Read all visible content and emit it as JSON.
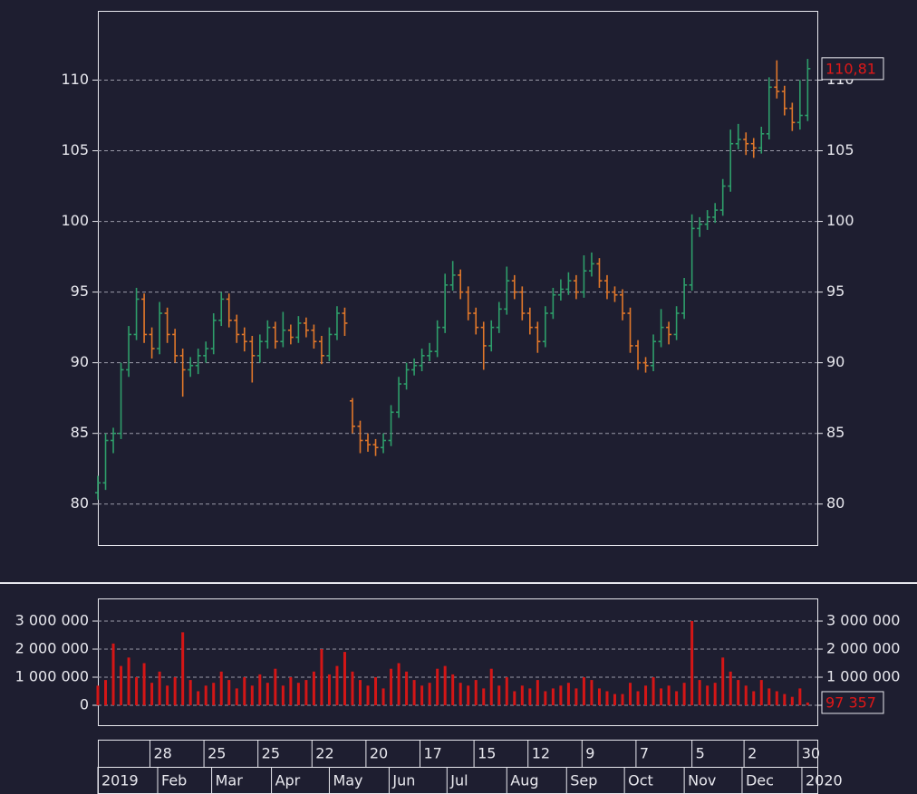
{
  "chart_data": {
    "type": "ohlc",
    "x": [
      0,
      4,
      8,
      12,
      16,
      20,
      24,
      28,
      32,
      36,
      40,
      44,
      48,
      52,
      56,
      60,
      64,
      68,
      72,
      76,
      80,
      84,
      88,
      92,
      96,
      100,
      104,
      108,
      112,
      116,
      120,
      124,
      128,
      132,
      136,
      140,
      144,
      148,
      152,
      156,
      160,
      164,
      168,
      172,
      176,
      180,
      184,
      188,
      192,
      196,
      200,
      204,
      208,
      212,
      216,
      220,
      224,
      228,
      232,
      236,
      240,
      244,
      248,
      252,
      256,
      260,
      264,
      268,
      272,
      276,
      280,
      284,
      288,
      292,
      296,
      300,
      304,
      308,
      312,
      316,
      320,
      324,
      328,
      332,
      336,
      340,
      344,
      348,
      352,
      356,
      360,
      364,
      368
    ],
    "open": [
      80.8,
      81.5,
      84.5,
      85.0,
      89.5,
      92.0,
      94.5,
      92.0,
      91.0,
      93.5,
      92.0,
      90.5,
      89.5,
      89.8,
      90.5,
      91.0,
      93.0,
      94.5,
      93.0,
      92.0,
      91.5,
      90.5,
      91.5,
      92.5,
      91.5,
      92.3,
      91.8,
      92.8,
      92.3,
      91.5,
      90.5,
      92.0,
      93.5,
      87.3,
      85.5,
      84.5,
      84.2,
      84.0,
      84.5,
      86.5,
      88.5,
      89.5,
      89.8,
      90.5,
      90.8,
      92.5,
      95.5,
      96.2,
      95.0,
      93.5,
      92.5,
      91.2,
      92.5,
      93.8,
      95.8,
      95.0,
      93.5,
      92.5,
      91.5,
      93.5,
      94.8,
      95.2,
      95.8,
      95.0,
      96.5,
      97.0,
      95.8,
      95.0,
      94.8,
      93.5,
      91.2,
      90.0,
      89.8,
      91.5,
      92.5,
      92.0,
      93.5,
      95.5,
      99.5,
      99.8,
      100.3,
      100.8,
      102.5,
      105.5,
      105.8,
      105.5,
      105.2,
      106.2,
      109.5,
      109.2,
      108.0,
      107.0,
      107.5
    ],
    "high": [
      82.0,
      85.0,
      85.4,
      90.0,
      92.6,
      95.3,
      94.9,
      92.5,
      94.3,
      93.9,
      92.4,
      91.0,
      90.4,
      91.0,
      91.5,
      93.5,
      95.0,
      94.9,
      93.4,
      92.5,
      91.9,
      92.0,
      93.0,
      92.9,
      93.6,
      92.7,
      93.3,
      93.2,
      92.7,
      91.9,
      92.5,
      94.0,
      93.9,
      87.5,
      85.9,
      85.0,
      84.6,
      85.0,
      87.0,
      89.0,
      90.0,
      90.3,
      91.0,
      91.4,
      93.0,
      96.3,
      97.2,
      96.6,
      95.4,
      93.9,
      92.9,
      93.0,
      94.3,
      96.8,
      96.2,
      95.4,
      93.9,
      92.9,
      94.0,
      95.3,
      95.9,
      96.4,
      96.2,
      97.6,
      97.8,
      97.4,
      96.2,
      95.4,
      95.2,
      93.9,
      91.6,
      90.4,
      92.0,
      93.8,
      92.9,
      94.0,
      96.0,
      100.5,
      100.3,
      100.8,
      101.3,
      103.0,
      106.5,
      106.9,
      106.3,
      105.9,
      106.7,
      110.2,
      111.4,
      109.6,
      108.4,
      110.0,
      111.5
    ],
    "low": [
      80.3,
      81.0,
      83.6,
      84.6,
      89.0,
      91.6,
      91.4,
      90.3,
      90.6,
      91.4,
      90.0,
      87.6,
      89.0,
      89.2,
      90.0,
      90.6,
      92.6,
      92.5,
      91.4,
      90.8,
      88.6,
      90.0,
      91.0,
      91.0,
      91.1,
      91.3,
      91.4,
      91.8,
      91.0,
      89.9,
      90.1,
      91.6,
      91.9,
      85.0,
      83.6,
      83.7,
      83.4,
      83.6,
      84.1,
      86.1,
      88.1,
      89.1,
      89.4,
      90.1,
      90.4,
      92.1,
      95.1,
      94.5,
      93.0,
      92.0,
      89.5,
      90.8,
      92.1,
      93.4,
      94.5,
      93.0,
      92.0,
      90.7,
      91.1,
      93.1,
      94.4,
      94.8,
      94.5,
      94.6,
      96.1,
      95.3,
      94.5,
      94.3,
      93.0,
      90.7,
      89.5,
      89.3,
      89.4,
      91.1,
      91.3,
      91.6,
      93.1,
      95.1,
      98.9,
      99.4,
      99.9,
      100.4,
      102.1,
      105.1,
      104.7,
      104.5,
      104.8,
      105.8,
      108.7,
      107.5,
      106.4,
      106.5,
      107.1
    ],
    "close": [
      81.5,
      84.5,
      85.0,
      89.5,
      92.0,
      94.5,
      92.0,
      91.0,
      93.5,
      92.0,
      90.5,
      89.5,
      89.8,
      90.5,
      91.0,
      93.0,
      94.5,
      93.0,
      92.0,
      91.5,
      90.5,
      91.5,
      92.5,
      91.5,
      92.3,
      91.8,
      92.8,
      92.3,
      91.5,
      90.5,
      92.0,
      93.5,
      92.8,
      85.5,
      84.5,
      84.2,
      84.0,
      84.5,
      86.5,
      88.5,
      89.5,
      89.8,
      90.5,
      90.8,
      92.5,
      95.5,
      96.2,
      95.0,
      93.5,
      92.5,
      91.2,
      92.5,
      93.8,
      95.8,
      95.0,
      93.5,
      92.5,
      91.5,
      93.5,
      94.8,
      95.2,
      95.8,
      95.0,
      96.5,
      97.0,
      95.8,
      95.0,
      94.8,
      93.5,
      91.2,
      90.0,
      89.8,
      91.5,
      92.5,
      92.0,
      93.5,
      95.5,
      99.5,
      99.8,
      100.3,
      100.8,
      102.5,
      105.5,
      105.8,
      105.5,
      105.2,
      106.2,
      109.5,
      109.2,
      108.0,
      107.0,
      107.5,
      110.81
    ],
    "volume": [
      700000,
      900000,
      2200000,
      1400000,
      1700000,
      1000000,
      1500000,
      800000,
      1200000,
      700000,
      1000000,
      2600000,
      900000,
      500000,
      700000,
      800000,
      1200000,
      900000,
      600000,
      1000000,
      700000,
      1100000,
      800000,
      1300000,
      700000,
      1000000,
      800000,
      900000,
      1200000,
      2000000,
      1100000,
      1400000,
      1900000,
      1200000,
      900000,
      700000,
      1000000,
      600000,
      1300000,
      1500000,
      1200000,
      900000,
      700000,
      800000,
      1300000,
      1400000,
      1100000,
      800000,
      700000,
      900000,
      600000,
      1300000,
      700000,
      1000000,
      500000,
      700000,
      600000,
      900000,
      500000,
      600000,
      700000,
      800000,
      600000,
      1000000,
      900000,
      600000,
      500000,
      400000,
      400000,
      800000,
      500000,
      700000,
      1000000,
      600000,
      700000,
      500000,
      800000,
      3000000,
      900000,
      700000,
      800000,
      1700000,
      1200000,
      900000,
      700000,
      500000,
      900000,
      600000,
      500000,
      400000,
      300000,
      600000,
      97357
    ],
    "xlim": [
      0,
      373
    ],
    "ylim": [
      77.1,
      114.9
    ],
    "yticks": [
      80,
      85,
      90,
      95,
      100,
      105,
      110
    ],
    "volume_ylim": [
      -710000,
      3806000
    ],
    "volume_yticks": [
      {
        "value": 3000000,
        "label": "3 000 000"
      },
      {
        "value": 2000000,
        "label": "2 000 000"
      },
      {
        "value": 1000000,
        "label": "1 000 000"
      },
      0
    ],
    "day_ticks": [
      {
        "value": 27,
        "label": "28"
      },
      {
        "value": 55,
        "label": "25"
      },
      {
        "value": 83,
        "label": "25"
      },
      {
        "value": 111,
        "label": "22"
      },
      {
        "value": 139,
        "label": "20"
      },
      {
        "value": 167,
        "label": "17"
      },
      {
        "value": 195,
        "label": "15"
      },
      {
        "value": 223,
        "label": "12"
      },
      {
        "value": 251,
        "label": "9"
      },
      {
        "value": 279,
        "label": "7"
      },
      {
        "value": 308,
        "label": "5"
      },
      {
        "value": 335,
        "label": "2"
      },
      {
        "value": 363,
        "label": "30"
      }
    ],
    "month_ticks": [
      {
        "value": 0,
        "label": "2019"
      },
      {
        "value": 31,
        "label": "Feb"
      },
      {
        "value": 59,
        "label": "Mar"
      },
      {
        "value": 90,
        "label": "Apr"
      },
      {
        "value": 120,
        "label": "May"
      },
      {
        "value": 151,
        "label": "Jun"
      },
      {
        "value": 181,
        "label": "Jul"
      },
      {
        "value": 212,
        "label": "Aug"
      },
      {
        "value": 243,
        "label": "Sep"
      },
      {
        "value": 273,
        "label": "Oct"
      },
      {
        "value": 304,
        "label": "Nov"
      },
      {
        "value": 334,
        "label": "Dec"
      },
      {
        "value": 365,
        "label": "2020"
      }
    ],
    "last_price": {
      "value": 110.81,
      "label": "110,81"
    },
    "last_volume": {
      "value": 97357,
      "label": "97 357"
    },
    "up_color": "#2e9e6a",
    "down_color": "#e0772a",
    "volume_color": "#d41616",
    "grid": true
  }
}
